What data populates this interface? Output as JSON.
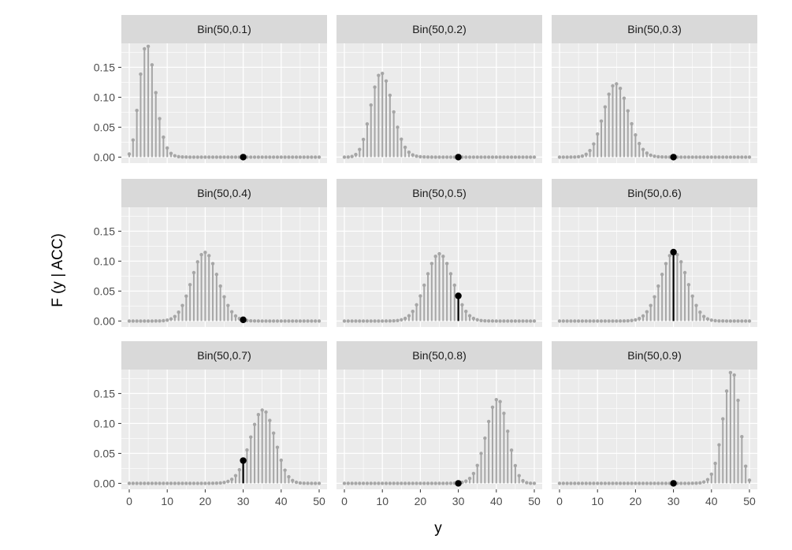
{
  "chart_data": {
    "type": "stem-facet",
    "ylabel": "F (y | ACC)",
    "xlabel": "y",
    "observed_y": 30,
    "n": 50,
    "xlim": [
      0,
      50
    ],
    "ylim": [
      -0.01,
      0.19
    ],
    "x_ticks": [
      0,
      10,
      20,
      30,
      40,
      50
    ],
    "y_ticks": [
      0.0,
      0.05,
      0.1,
      0.15
    ],
    "y_tick_labels": [
      "0.00",
      "0.05",
      "0.10",
      "0.15"
    ],
    "x_tick_labels": [
      "0",
      "10",
      "20",
      "30",
      "40",
      "50"
    ],
    "grid": true,
    "facets": [
      {
        "label": "Bin(50,0.1)",
        "p": 0.1,
        "value_at_observed": 0.0
      },
      {
        "label": "Bin(50,0.2)",
        "p": 0.2,
        "value_at_observed": 0.0
      },
      {
        "label": "Bin(50,0.3)",
        "p": 0.3,
        "value_at_observed": 0.0
      },
      {
        "label": "Bin(50,0.4)",
        "p": 0.4,
        "value_at_observed": 0.002
      },
      {
        "label": "Bin(50,0.5)",
        "p": 0.5,
        "value_at_observed": 0.042
      },
      {
        "label": "Bin(50,0.6)",
        "p": 0.6,
        "value_at_observed": 0.115
      },
      {
        "label": "Bin(50,0.7)",
        "p": 0.7,
        "value_at_observed": 0.038
      },
      {
        "label": "Bin(50,0.8)",
        "p": 0.8,
        "value_at_observed": 0.0
      },
      {
        "label": "Bin(50,0.9)",
        "p": 0.9,
        "value_at_observed": 0.0
      }
    ],
    "colors": {
      "panel_bg": "#ebebeb",
      "strip_bg": "#d9d9d9",
      "grid": "#ffffff",
      "stem": "#a6a6a6",
      "highlight": "#000000"
    }
  }
}
